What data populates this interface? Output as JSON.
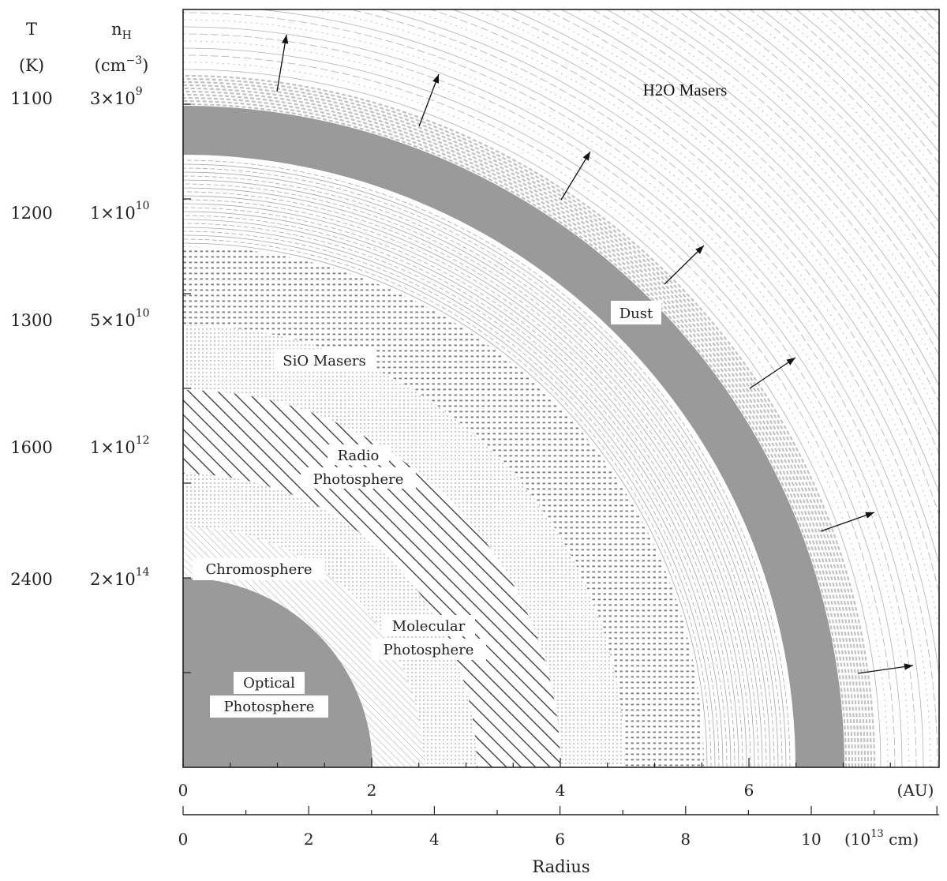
{
  "header": {
    "temperature_symbol": "T",
    "temperature_unit": "(K)",
    "density_symbol": "n",
    "density_subscript": "H",
    "density_unit_base": "(cm",
    "density_unit_exp": "−3",
    "density_unit_close": ")"
  },
  "levels": [
    {
      "temperature": "1100",
      "density_base": "3×10",
      "density_exp": "9"
    },
    {
      "temperature": "1200",
      "density_base": "1×10",
      "density_exp": "10"
    },
    {
      "temperature": "1300",
      "density_base": "5×10",
      "density_exp": "10"
    },
    {
      "temperature": "1600",
      "density_base": "1×10",
      "density_exp": "12"
    },
    {
      "temperature": "2400",
      "density_base": "2×10",
      "density_exp": "14"
    }
  ],
  "regions": {
    "h2o_masers": "H2O Masers",
    "dust": "Dust",
    "sio_masers": "SiO Masers",
    "radio_photosphere_1": "Radio",
    "radio_photosphere_2": "Photosphere",
    "chromosphere": "Chromosphere",
    "molecular_photosphere_1": "Molecular",
    "molecular_photosphere_2": "Photosphere",
    "optical_photosphere_1": "Optical",
    "optical_photosphere_2": "Photosphere"
  },
  "axes": {
    "au_ticks": [
      "0",
      "2",
      "4",
      "6"
    ],
    "au_unit": "(AU)",
    "cm_ticks": [
      "0",
      "2",
      "4",
      "6",
      "8",
      "10"
    ],
    "cm_unit_open": "(10",
    "cm_unit_exp": "13",
    "cm_unit_close": " cm)",
    "xlabel": "Radius"
  },
  "colors": {
    "solid": "#9a9a9a",
    "hatch": "#444444",
    "fine": "#9e9e9e",
    "light": "#c8c8c8",
    "frame": "#222222"
  }
}
